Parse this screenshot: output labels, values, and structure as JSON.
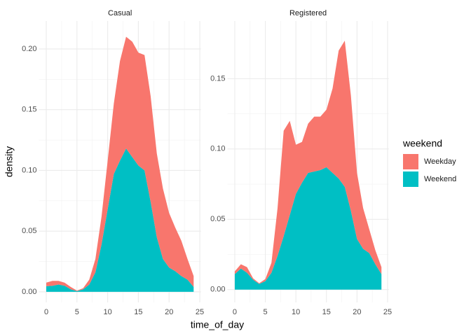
{
  "chart_data": {
    "type": "area",
    "stacked": true,
    "x_label": "time_of_day",
    "y_label": "density",
    "legend_title": "weekend",
    "grid": true,
    "minor_grid": true,
    "legend_position": "right",
    "series": [
      {
        "name": "Weekday",
        "color": "#f8766d"
      },
      {
        "name": "Weekend",
        "color": "#00bfc4"
      }
    ],
    "facets": [
      {
        "title": "Casual",
        "x": [
          0,
          1,
          2,
          3,
          4,
          5,
          6,
          7,
          8,
          9,
          10,
          11,
          12,
          13,
          14,
          15,
          16,
          17,
          18,
          19,
          20,
          21,
          22,
          23,
          24
        ],
        "values": [
          [
            0.003,
            0.004,
            0.003,
            0.0025,
            0.002,
            0.0004,
            0.001,
            0.004,
            0.011,
            0.023,
            0.04,
            0.058,
            0.082,
            0.092,
            0.095,
            0.093,
            0.095,
            0.087,
            0.069,
            0.058,
            0.045,
            0.036,
            0.029,
            0.017,
            0.009
          ],
          [
            0.0046,
            0.005,
            0.006,
            0.005,
            0.002,
            0.0006,
            0.002,
            0.006,
            0.016,
            0.039,
            0.068,
            0.097,
            0.108,
            0.118,
            0.111,
            0.104,
            0.1,
            0.074,
            0.045,
            0.027,
            0.02,
            0.017,
            0.013,
            0.01,
            0.004
          ]
        ],
        "xlim": [
          -1.2,
          25.2
        ],
        "ylim": [
          -0.0087,
          0.223
        ],
        "xticks": [
          0,
          5,
          10,
          15,
          20,
          25
        ],
        "yticks": [
          {
            "value": 0,
            "label": "0.00"
          },
          {
            "value": 0.05,
            "label": "0.05"
          },
          {
            "value": 0.1,
            "label": "0.10"
          },
          {
            "value": 0.15,
            "label": "0.15"
          },
          {
            "value": 0.2,
            "label": "0.20"
          }
        ]
      },
      {
        "title": "Registered",
        "x": [
          0,
          1,
          2,
          3,
          4,
          5,
          6,
          7,
          8,
          9,
          10,
          11,
          12,
          13,
          14,
          15,
          16,
          17,
          18,
          19,
          20,
          21,
          22,
          23,
          24
        ],
        "values": [
          [
            0.002,
            0.003,
            0.004,
            0.001,
            0.0005,
            0.0015,
            0.007,
            0.034,
            0.075,
            0.067,
            0.035,
            0.029,
            0.035,
            0.039,
            0.038,
            0.041,
            0.06,
            0.091,
            0.104,
            0.082,
            0.047,
            0.029,
            0.017,
            0.01,
            0.005
          ],
          [
            0.011,
            0.015,
            0.012,
            0.007,
            0.004,
            0.006,
            0.012,
            0.024,
            0.038,
            0.053,
            0.068,
            0.076,
            0.083,
            0.084,
            0.085,
            0.087,
            0.083,
            0.079,
            0.073,
            0.056,
            0.036,
            0.029,
            0.026,
            0.018,
            0.011
          ]
        ],
        "xlim": [
          -1.2,
          25.2
        ],
        "ylim": [
          -0.0091,
          0.191
        ],
        "xticks": [
          0,
          5,
          10,
          15,
          20,
          25
        ],
        "yticks": [
          {
            "value": 0,
            "label": "0.00"
          },
          {
            "value": 0.05,
            "label": "0.05"
          },
          {
            "value": 0.1,
            "label": "0.10"
          },
          {
            "value": 0.15,
            "label": "0.15"
          }
        ]
      }
    ]
  }
}
